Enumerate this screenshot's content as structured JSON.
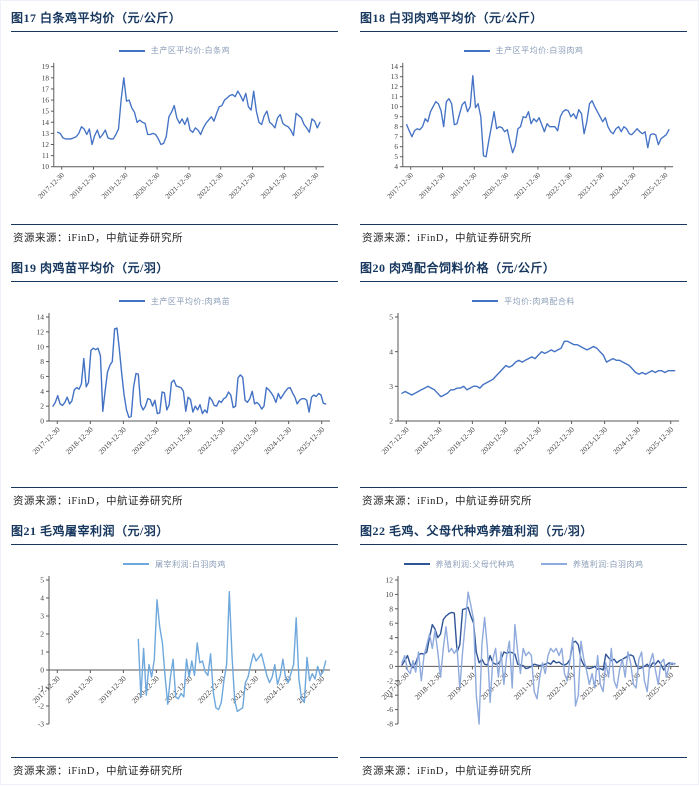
{
  "source_note": "资源来源：iFinD，中航证券研究所",
  "colors": {
    "title_navy": "#17375E",
    "rule_navy": "#17375E",
    "primary_line_blue": "#4472C4",
    "light_line_blue": "#6FA8DC",
    "dark_series_blue": "#2F5597",
    "pale_series_blue": "#8FAADC",
    "legend_text": "#8B9DB8",
    "axis_gray": "#595959"
  },
  "x_ticks": [
    2018,
    2019,
    2020,
    2021,
    2022,
    2023,
    2024,
    2025,
    2026
  ],
  "x_tick_labels": [
    "2017-12-30",
    "2018-12-30",
    "2019-12-30",
    "2020-12-30",
    "2021-12-30",
    "2022-12-30",
    "2023-12-30",
    "2024-12-30",
    "2025-12-30"
  ],
  "chart_data": [
    {
      "type": "line",
      "title": "图17 白条鸡平均价（元/公斤）",
      "ylabel": "",
      "xlabel": "",
      "ylim": [
        10,
        19
      ],
      "ystep": 1,
      "x_range": [
        2017.75,
        2026.25
      ],
      "label_at_zero": false,
      "legend_position": "top-center",
      "grid": false,
      "series": [
        {
          "name": "主产区平均价:白条鸡",
          "color": "#4472C4",
          "x_start": 2017.87,
          "x_end": 2026.12,
          "values": [
            13.1,
            13.0,
            12.6,
            12.5,
            12.5,
            12.5,
            12.6,
            12.7,
            13.0,
            13.6,
            13.4,
            12.9,
            13.4,
            12.0,
            12.8,
            13.3,
            12.6,
            12.9,
            13.3,
            12.6,
            12.5,
            12.5,
            12.9,
            13.4,
            16.1,
            18.0,
            15.9,
            16.0,
            15.3,
            14.9,
            14.0,
            14.2,
            14.0,
            13.9,
            12.9,
            12.9,
            13.0,
            12.9,
            12.5,
            12.0,
            12.1,
            12.7,
            14.5,
            14.9,
            15.5,
            14.4,
            13.9,
            14.3,
            13.8,
            14.4,
            13.3,
            13.1,
            13.5,
            13.3,
            12.9,
            13.5,
            13.9,
            14.2,
            14.5,
            14.1,
            14.8,
            15.4,
            15.5,
            16.0,
            16.2,
            16.4,
            16.5,
            16.3,
            16.8,
            16.4,
            15.9,
            16.6,
            15.4,
            15.1,
            16.8,
            15.0,
            14.0,
            13.8,
            14.6,
            15.0,
            14.0,
            13.8,
            13.5,
            14.4,
            14.7,
            13.9,
            13.7,
            13.6,
            13.3,
            12.8,
            14.8,
            14.6,
            14.4,
            13.8,
            13.5,
            13.1,
            14.3,
            14.1,
            13.5,
            14.0
          ]
        }
      ]
    },
    {
      "type": "line",
      "title": "图18 白羽肉鸡平均价（元/公斤）",
      "ylabel": "",
      "xlabel": "",
      "ylim": [
        4,
        14
      ],
      "ystep": 1,
      "x_range": [
        2017.75,
        2026.25
      ],
      "label_at_zero": false,
      "legend_position": "top-center",
      "grid": false,
      "series": [
        {
          "name": "主产区平均价:白羽肉鸡",
          "color": "#4472C4",
          "x_start": 2017.87,
          "x_end": 2026.12,
          "values": [
            8.2,
            7.6,
            7.0,
            7.6,
            7.8,
            7.7,
            8.0,
            8.8,
            8.5,
            9.5,
            10.0,
            10.5,
            10.3,
            9.6,
            8.0,
            10.5,
            10.8,
            10.3,
            8.2,
            8.3,
            9.3,
            10.2,
            10.5,
            9.5,
            10.0,
            13.1,
            9.9,
            10.3,
            9.0,
            5.1,
            5.0,
            6.6,
            8.0,
            9.5,
            7.8,
            8.0,
            7.9,
            7.5,
            7.7,
            6.5,
            5.4,
            6.1,
            7.8,
            8.0,
            9.0,
            8.9,
            9.5,
            8.3,
            8.8,
            8.5,
            8.9,
            8.2,
            7.5,
            8.3,
            8.0,
            8.0,
            8.0,
            7.6,
            9.0,
            9.5,
            9.7,
            9.6,
            9.0,
            9.3,
            8.8,
            9.7,
            9.3,
            7.3,
            8.5,
            10.3,
            10.6,
            10.0,
            9.5,
            9.0,
            8.5,
            8.9,
            8.0,
            7.5,
            7.3,
            7.8,
            8.0,
            7.5,
            8.0,
            7.8,
            7.3,
            7.2,
            7.5,
            7.8,
            7.5,
            7.3,
            7.5,
            5.9,
            7.2,
            7.3,
            7.2,
            6.2,
            6.8,
            7.0,
            7.2,
            7.7
          ]
        }
      ]
    },
    {
      "type": "line",
      "title": "图19 肉鸡苗平均价（元/羽）",
      "ylabel": "",
      "xlabel": "",
      "ylim": [
        0,
        14
      ],
      "ystep": 2,
      "x_range": [
        2017.75,
        2026.25
      ],
      "label_at_zero": false,
      "legend_position": "top-center",
      "grid": false,
      "series": [
        {
          "name": "主产区平均价:肉鸡苗",
          "color": "#4472C4",
          "x_start": 2017.87,
          "x_end": 2026.12,
          "values": [
            2.0,
            2.5,
            3.4,
            2.3,
            2.1,
            2.5,
            3.2,
            2.3,
            2.7,
            4.2,
            4.5,
            4.3,
            5.0,
            8.4,
            4.6,
            5.2,
            9.5,
            9.8,
            9.6,
            9.8,
            8.8,
            1.3,
            4.0,
            6.6,
            7.5,
            8.0,
            12.4,
            12.5,
            9.6,
            6.4,
            3.5,
            1.5,
            0.5,
            0.6,
            4.6,
            6.4,
            6.3,
            2.2,
            1.5,
            2.0,
            3.0,
            2.9,
            2.0,
            2.8,
            1.0,
            1.1,
            3.9,
            3.8,
            1.5,
            2.2,
            5.2,
            5.5,
            4.7,
            4.6,
            4.5,
            4.0,
            1.3,
            3.2,
            2.9,
            1.2,
            2.0,
            1.5,
            2.2,
            1.0,
            1.5,
            1.1,
            3.2,
            2.8,
            2.1,
            2.0,
            2.7,
            2.5,
            3.0,
            3.2,
            3.9,
            3.5,
            1.8,
            2.0,
            5.8,
            6.2,
            5.9,
            2.8,
            2.5,
            3.0,
            4.0,
            2.3,
            2.5,
            2.2,
            1.6,
            2.0,
            4.5,
            4.2,
            3.8,
            3.3,
            2.5,
            3.7,
            3.0,
            3.5,
            4.0,
            4.4,
            4.5,
            3.8,
            3.2,
            2.3,
            2.8,
            3.0,
            3.0,
            2.8,
            1.2,
            3.2,
            3.5,
            3.3,
            3.7,
            3.5,
            2.4,
            2.3
          ]
        }
      ]
    },
    {
      "type": "line",
      "title": "图20 肉鸡配合饲料价格（元/公斤）",
      "ylabel": "",
      "xlabel": "",
      "ylim": [
        2,
        5
      ],
      "ystep": 1,
      "x_range": [
        2017.75,
        2026.25
      ],
      "label_at_zero": false,
      "legend_position": "top-center",
      "grid": false,
      "series": [
        {
          "name": "平均价:肉鸡配合料",
          "color": "#4472C4",
          "x_start": 2017.87,
          "x_end": 2026.12,
          "values": [
            2.8,
            2.85,
            2.8,
            2.75,
            2.8,
            2.85,
            2.9,
            2.95,
            3.0,
            2.95,
            2.9,
            2.8,
            2.7,
            2.75,
            2.8,
            2.9,
            2.9,
            2.95,
            2.95,
            3.0,
            2.9,
            2.95,
            3.0,
            3.0,
            2.95,
            3.05,
            3.1,
            3.15,
            3.2,
            3.3,
            3.4,
            3.5,
            3.6,
            3.55,
            3.6,
            3.7,
            3.75,
            3.7,
            3.75,
            3.8,
            3.85,
            3.8,
            3.9,
            4.0,
            3.95,
            4.0,
            4.05,
            4.0,
            4.05,
            4.1,
            4.3,
            4.3,
            4.25,
            4.2,
            4.2,
            4.15,
            4.1,
            4.05,
            4.1,
            4.15,
            4.1,
            4.0,
            3.9,
            3.7,
            3.75,
            3.8,
            3.75,
            3.75,
            3.7,
            3.65,
            3.6,
            3.5,
            3.4,
            3.35,
            3.4,
            3.35,
            3.4,
            3.45,
            3.4,
            3.45,
            3.45,
            3.4,
            3.45,
            3.45,
            3.45
          ]
        }
      ]
    },
    {
      "type": "line",
      "title": "图21 毛鸡屠宰利润（元/羽）",
      "ylabel": "",
      "xlabel": "",
      "ylim": [
        -3,
        5
      ],
      "ystep": 1,
      "x_range": [
        2017.75,
        2026.25
      ],
      "label_at_zero": true,
      "legend_position": "top-center",
      "grid": false,
      "series": [
        {
          "name": "屠宰利润:白羽肉鸡",
          "color": "#6FA8DC",
          "x_start": 2020.45,
          "x_end": 2026.12,
          "values": [
            1.7,
            -1.5,
            1.2,
            -1.4,
            0.3,
            -0.4,
            0.6,
            3.9,
            2.4,
            1.5,
            -0.3,
            -1.9,
            -0.4,
            0.6,
            -1.5,
            -1.6,
            -1.3,
            -1.5,
            0.6,
            -0.4,
            0.5,
            -0.3,
            1.5,
            0.4,
            0.5,
            -0.1,
            -0.3,
            0.9,
            -1.2,
            -2.1,
            -2.2,
            -1.8,
            -0.6,
            0.3,
            4.35,
            0.8,
            -1.7,
            -2.3,
            -2.2,
            -2.1,
            -0.7,
            -0.4,
            0.3,
            0.9,
            0.5,
            0.7,
            0.9,
            0.3,
            -0.3,
            -0.7,
            -0.4,
            0.3,
            -0.8,
            -0.3,
            0.6,
            -0.4,
            -0.7,
            -0.2,
            0.3,
            2.9,
            -0.5,
            -1.6,
            -1.8,
            0.7,
            -0.6,
            -0.2,
            -0.5,
            0.2,
            -0.3,
            -0.1,
            0.5
          ]
        }
      ]
    },
    {
      "type": "line",
      "title": "图22 毛鸡、父母代种鸡养殖利润（元/羽）",
      "ylabel": "",
      "xlabel": "",
      "ylim": [
        -8,
        12
      ],
      "ystep": 2,
      "x_range": [
        2017.75,
        2026.25
      ],
      "label_at_zero": true,
      "legend_position": "top-center",
      "grid": false,
      "series": [
        {
          "name": "养殖利润:父母代种鸡",
          "color": "#2F5597",
          "x_start": 2017.87,
          "x_end": 2026.12,
          "values": [
            0.2,
            0.8,
            1.5,
            0.3,
            -0.2,
            0.5,
            1.6,
            1.8,
            1.7,
            2.0,
            4.0,
            5.8,
            5.2,
            4.0,
            4.5,
            6.5,
            7.0,
            7.3,
            7.5,
            7.4,
            2.0,
            3.0,
            7.9,
            8.0,
            8.2,
            7.0,
            6.0,
            2.0,
            0.5,
            1.0,
            0.3,
            0.2,
            1.5,
            0.5,
            0.3,
            0.4,
            1.0,
            2.0,
            1.8,
            2.0,
            1.9,
            1.7,
            0.3,
            0.2,
            0.1,
            -0.3,
            -0.2,
            0.0,
            0.3,
            0.2,
            0.1,
            0.2,
            0.3,
            0.5,
            0.3,
            0.8,
            0.5,
            0.6,
            0.3,
            0.2,
            0.4,
            1.0,
            3.3,
            3.5,
            3.0,
            1.0,
            0.2,
            -0.2,
            -0.3,
            -0.2,
            0.0,
            -0.4,
            -0.3,
            -0.5,
            1.7,
            1.2,
            0.8,
            1.0,
            0.5,
            0.8,
            1.0,
            1.2,
            1.5,
            1.6,
            1.4,
            0.2,
            -0.3,
            -0.2,
            0.0,
            0.3,
            -0.2,
            0.5,
            0.3,
            0.8,
            0.3,
            -0.5,
            0.2,
            0.5,
            0.3,
            0.4
          ]
        },
        {
          "name": "养殖利润:白羽肉鸡",
          "color": "#8FAADC",
          "x_start": 2017.87,
          "x_end": 2026.12,
          "values": [
            0.5,
            1.5,
            -0.5,
            -1.0,
            0.8,
            -0.8,
            2.0,
            -2.0,
            1.5,
            3.0,
            4.5,
            2.5,
            5.0,
            2.0,
            -1.5,
            2.5,
            5.5,
            2.0,
            2.5,
            1.8,
            2.5,
            -3.0,
            2.0,
            6.0,
            10.3,
            8.5,
            6.5,
            -4.0,
            -8.0,
            3.0,
            6.8,
            2.5,
            -5.0,
            1.0,
            2.5,
            -1.5,
            2.0,
            -2.5,
            1.5,
            3.5,
            -3.0,
            5.8,
            2.0,
            -1.0,
            2.5,
            1.5,
            2.0,
            1.5,
            -3.5,
            -4.5,
            -1.5,
            0.5,
            -1.0,
            1.5,
            2.5,
            2.0,
            2.5,
            1.5,
            2.5,
            -1.0,
            -2.0,
            1.0,
            4.0,
            -5.5,
            -4.0,
            3.5,
            1.0,
            -0.5,
            -2.5,
            -1.0,
            -3.0,
            1.5,
            -2.5,
            -3.5,
            0.5,
            -1.5,
            2.5,
            -2.0,
            -3.0,
            -0.5,
            1.0,
            -1.5,
            2.0,
            0.5,
            -2.5,
            -3.0,
            1.0,
            2.0,
            -2.0,
            -3.5,
            0.5,
            1.8,
            -0.5,
            -2.5,
            0.5,
            1.0,
            -1.5,
            0.2,
            0.5,
            0.3
          ]
        }
      ]
    }
  ]
}
